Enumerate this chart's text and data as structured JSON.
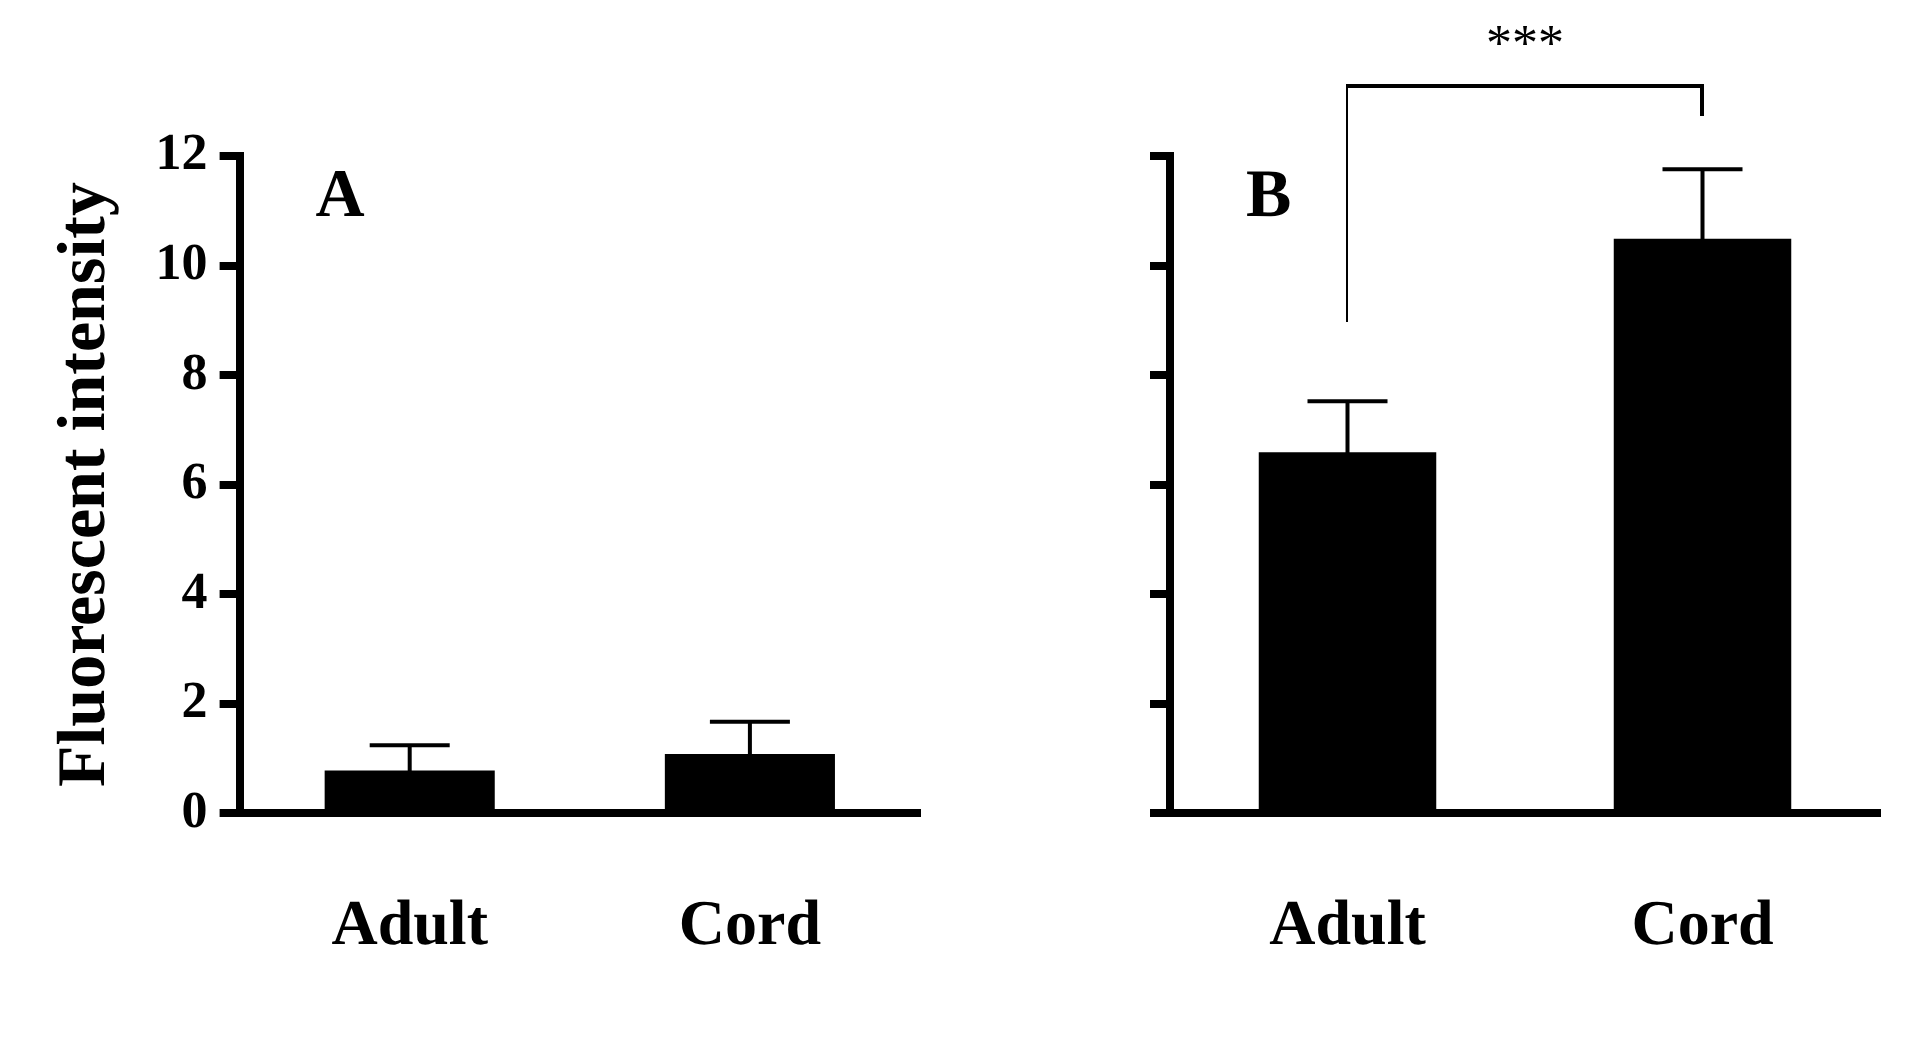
{
  "chart_data": [
    {
      "type": "bar",
      "title": "A",
      "ylabel": "Fluorescent intensity",
      "categories": [
        "Adult",
        "Cord"
      ],
      "values": [
        0.78,
        1.08
      ],
      "errors": [
        0.46,
        0.59
      ],
      "color": "#000000",
      "ylim": [
        0,
        12
      ],
      "yticks": [
        0,
        2,
        4,
        6,
        8,
        10,
        12
      ],
      "grid": false,
      "legend": false
    },
    {
      "type": "bar",
      "title": "B",
      "categories": [
        "Adult",
        "Cord"
      ],
      "values": [
        6.59,
        10.49
      ],
      "errors": [
        0.93,
        1.27
      ],
      "color": "#000000",
      "ylim": [
        0,
        12
      ],
      "yticks": [
        0,
        2,
        4,
        6,
        8,
        10,
        12
      ],
      "tick_labels": "x",
      "grid": false,
      "legend": false,
      "annotations": [
        "***"
      ]
    }
  ]
}
